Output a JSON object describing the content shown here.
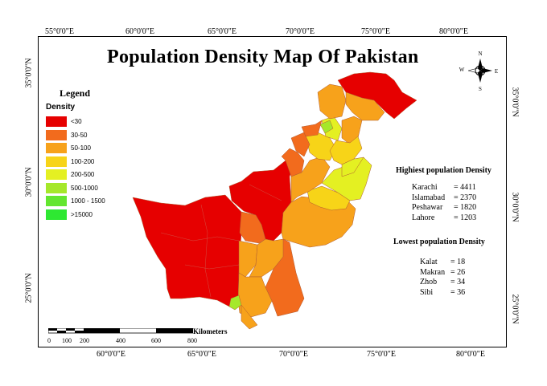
{
  "map": {
    "title": "Population Density Map Of Pakistan",
    "graticule": {
      "top": [
        "55°0'0\"E",
        "60°0'0\"E",
        "65°0'0\"E",
        "70°0'0\"E",
        "75°0'0\"E",
        "80°0'0\"E"
      ],
      "bottom": [
        "60°0'0\"E",
        "65°0'0\"E",
        "70°0'0\"E",
        "75°0'0\"E",
        "80°0'0\"E"
      ],
      "left": [
        "35°0'0\"N",
        "30°0'0\"N",
        "25°0'0\"N"
      ],
      "right": [
        "35°0'0\"N",
        "30°0'0\"N",
        "25°0'0\"N"
      ]
    }
  },
  "legend": {
    "title": "Legend",
    "subtitle": "Density",
    "items": [
      {
        "label": "<30",
        "color": "#e60000"
      },
      {
        "label": "30-50",
        "color": "#f26b1d"
      },
      {
        "label": "50-100",
        "color": "#f7a21b"
      },
      {
        "label": "100-200",
        "color": "#f7d418"
      },
      {
        "label": "200-500",
        "color": "#e4f022"
      },
      {
        "label": "500-1000",
        "color": "#a5e82a"
      },
      {
        "label": "1000 - 1500",
        "color": "#63e62f"
      },
      {
        "label": ">15000",
        "color": "#2ee832"
      }
    ]
  },
  "stats": {
    "highest": {
      "heading": "Highiest population Density",
      "rows": [
        {
          "name": "Karachi",
          "value": "= 4411"
        },
        {
          "name": "Islamabad",
          "value": "= 2370"
        },
        {
          "name": "Peshawar",
          "value": "= 1820"
        },
        {
          "name": "Lahore",
          "value": "= 1203"
        }
      ]
    },
    "lowest": {
      "heading": "Lowest population Density",
      "rows": [
        {
          "name": "Kalat",
          "value": "= 18"
        },
        {
          "name": "Makran",
          "value": "= 26"
        },
        {
          "name": "Zhob",
          "value": "= 34"
        },
        {
          "name": "Sibi",
          "value": "= 36"
        }
      ]
    }
  },
  "compass": {
    "n": "N",
    "s": "S",
    "e": "E",
    "w": "W"
  },
  "scale_bar": {
    "caption": "Kilometers",
    "ticks": [
      "0",
      "100",
      "200",
      "400",
      "600",
      "800"
    ]
  }
}
